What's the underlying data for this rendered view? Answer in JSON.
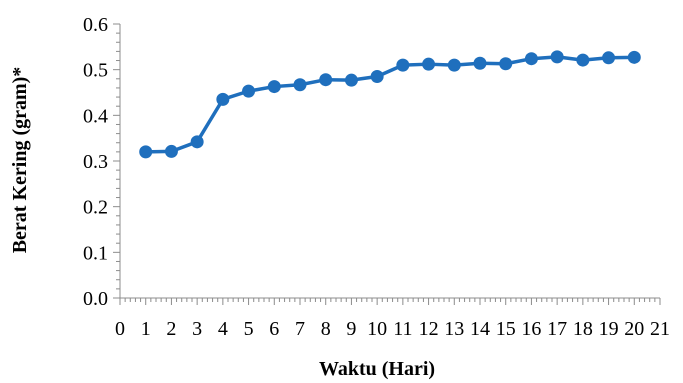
{
  "chart_data": {
    "type": "line",
    "title": "",
    "xlabel": "Waktu (Hari)",
    "ylabel": "Berat Kering (gram)*",
    "xlim": [
      0,
      21
    ],
    "ylim": [
      0,
      0.6
    ],
    "x_ticks": [
      "0",
      "1",
      "2",
      "3",
      "4",
      "5",
      "6",
      "7",
      "8",
      "9",
      "10",
      "11",
      "12",
      "13",
      "14",
      "15",
      "16",
      "17",
      "18",
      "19",
      "20",
      "21"
    ],
    "y_ticks": [
      "0.0",
      "0.1",
      "0.2",
      "0.3",
      "0.4",
      "0.5",
      "0.6"
    ],
    "y_tick_values": [
      0,
      0.1,
      0.2,
      0.3,
      0.4,
      0.5,
      0.6
    ],
    "grid": false,
    "legend": "none",
    "color": "#1f6fbd",
    "series": [
      {
        "x": [
          1,
          2,
          3,
          4,
          5,
          6,
          7,
          8,
          9,
          10,
          11,
          12,
          13,
          14,
          15,
          16,
          17,
          18,
          19,
          20
        ],
        "values": [
          0.32,
          0.321,
          0.342,
          0.435,
          0.453,
          0.463,
          0.467,
          0.478,
          0.477,
          0.485,
          0.51,
          0.512,
          0.51,
          0.514,
          0.513,
          0.524,
          0.528,
          0.521,
          0.526,
          0.527
        ]
      }
    ]
  }
}
